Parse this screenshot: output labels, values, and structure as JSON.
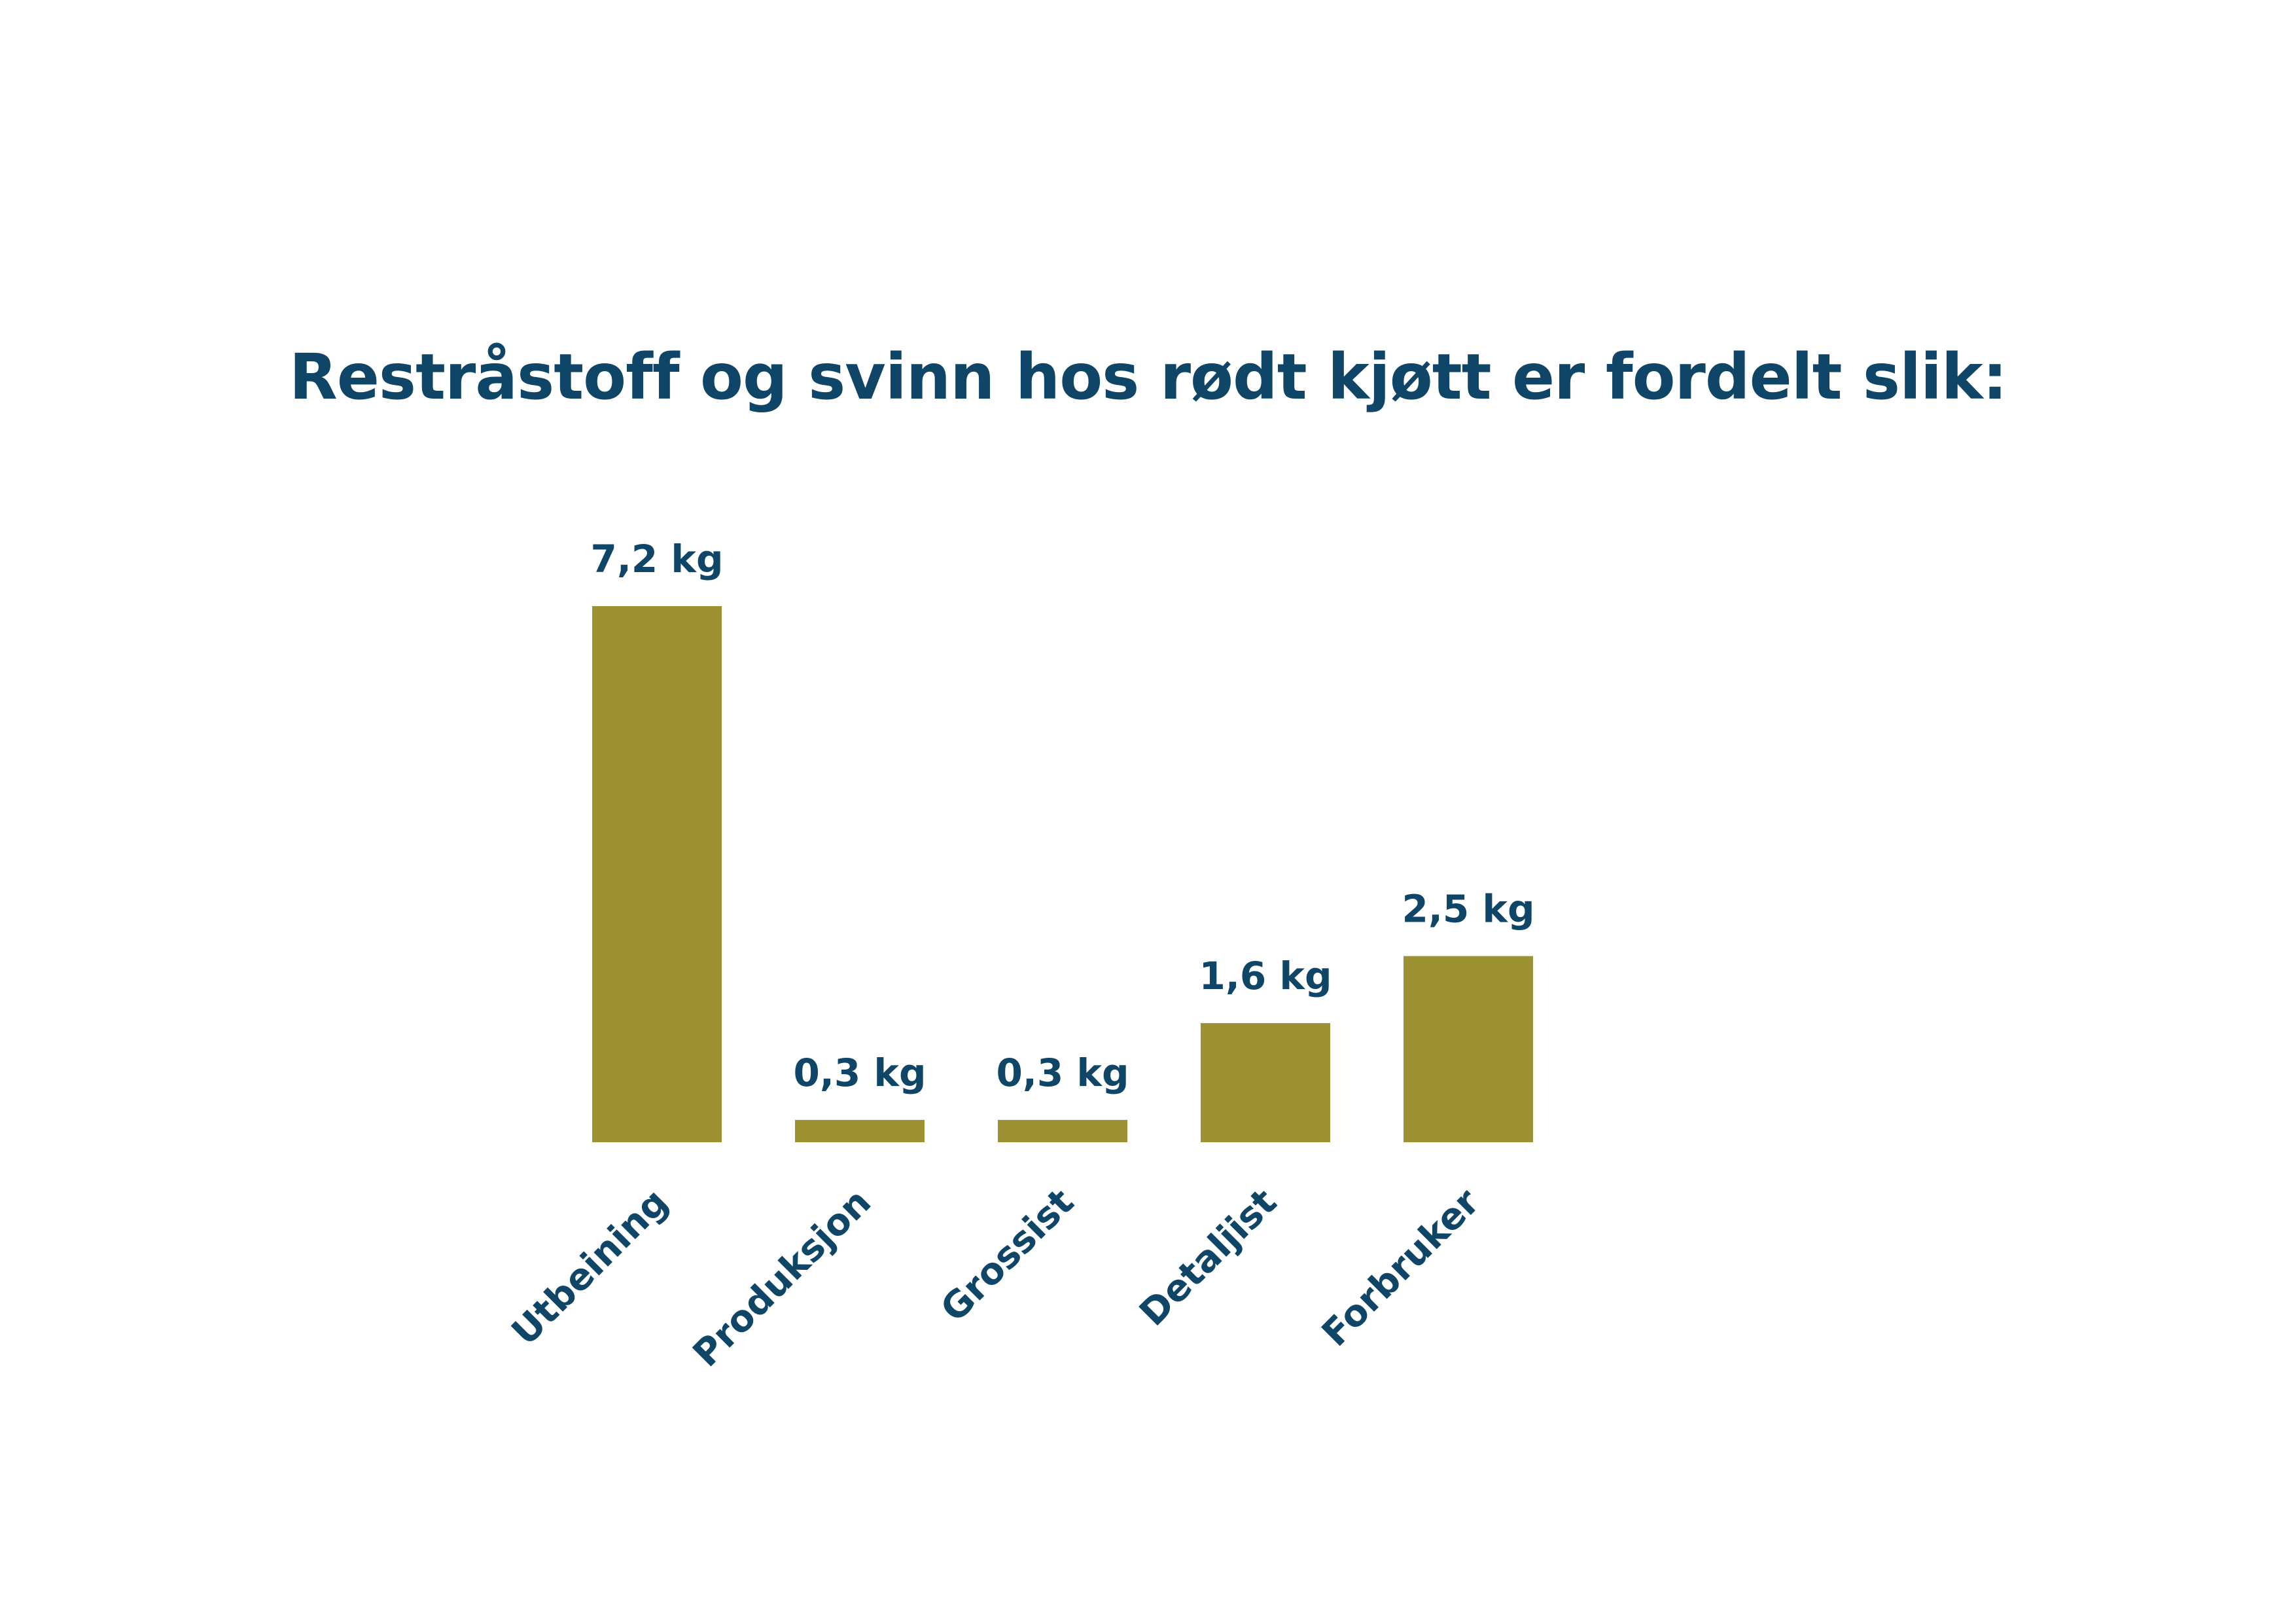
{
  "chart_data": {
    "type": "bar",
    "title": "Restråstoff og svinn hos rødt kjøtt er fordelt slik:",
    "categories": [
      "Utbeining",
      "Produksjon",
      "Grossist",
      "Detaljist",
      "Forbruker"
    ],
    "values": [
      7.2,
      0.3,
      0.3,
      1.6,
      2.5
    ],
    "value_labels": [
      "7,2 kg",
      "0,3 kg",
      "0,3 kg",
      "1,6 kg",
      "2,5 kg"
    ],
    "unit": "kg",
    "xlabel": "",
    "ylabel": "",
    "grid": false,
    "legend": "none",
    "colors": {
      "bar": "#9c9234",
      "text": "#0f4566"
    }
  }
}
